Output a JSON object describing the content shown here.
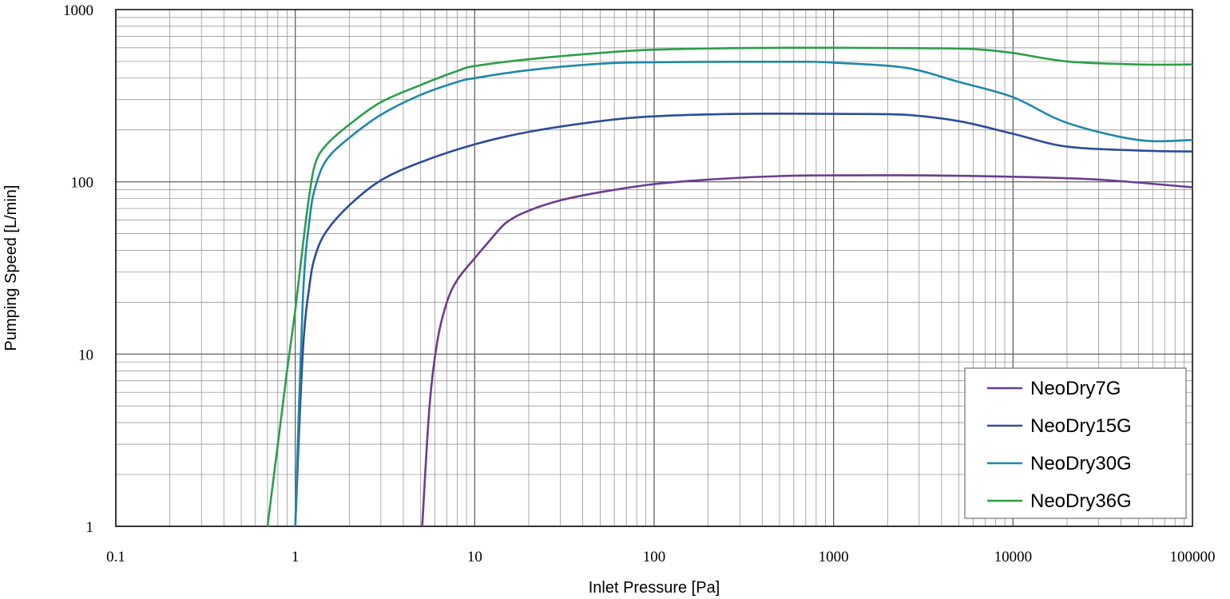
{
  "chart_data": {
    "type": "line",
    "title": "",
    "xlabel": "Inlet Pressure [Pa]",
    "ylabel": "Pumping  Speed [L/min]",
    "xscale": "log",
    "yscale": "log",
    "xlim": [
      0.1,
      100000
    ],
    "ylim": [
      1,
      1000
    ],
    "x_tick_labels": [
      "0.1",
      "1",
      "10",
      "100",
      "1000",
      "10000",
      "100000"
    ],
    "y_tick_labels": [
      "1",
      "10",
      "100",
      "1000"
    ],
    "grid": true,
    "legend_position": "bottom-right",
    "series": [
      {
        "name": "NeoDry7G",
        "color": "#6a3d8f",
        "x": [
          5.1,
          5.6,
          6.2,
          7,
          8,
          10,
          12,
          15,
          20,
          30,
          50,
          100,
          200,
          500,
          1000,
          3000,
          10000,
          30000,
          100000
        ],
        "y": [
          1,
          5,
          12,
          20,
          27,
          36,
          45,
          58,
          68,
          78,
          87,
          97,
          103,
          108,
          109,
          109,
          107,
          103,
          93
        ]
      },
      {
        "name": "NeoDry15G",
        "color": "#2e4b9b",
        "x": [
          1,
          1.1,
          1.2,
          1.3,
          1.5,
          2,
          3,
          5,
          10,
          20,
          50,
          100,
          300,
          1000,
          2500,
          5000,
          10000,
          20000,
          50000,
          100000
        ],
        "y": [
          1,
          10,
          25,
          38,
          52,
          73,
          102,
          130,
          165,
          195,
          225,
          240,
          248,
          248,
          245,
          225,
          190,
          160,
          152,
          150
        ]
      },
      {
        "name": "NeoDry30G",
        "color": "#1f88a8",
        "x": [
          1,
          1.1,
          1.2,
          1.3,
          1.5,
          2,
          3,
          5,
          8,
          10,
          20,
          50,
          100,
          300,
          700,
          1000,
          2500,
          5000,
          10000,
          20000,
          50000,
          100000
        ],
        "y": [
          1,
          20,
          60,
          95,
          135,
          180,
          245,
          320,
          380,
          400,
          445,
          485,
          495,
          498,
          498,
          492,
          460,
          380,
          310,
          220,
          175,
          175
        ]
      },
      {
        "name": "NeoDry36G",
        "color": "#2b9e4a",
        "x": [
          0.7,
          0.8,
          0.9,
          1,
          1.1,
          1.2,
          1.3,
          1.5,
          2,
          3,
          5,
          8,
          10,
          20,
          50,
          100,
          300,
          1000,
          3000,
          6000,
          10000,
          20000,
          50000,
          100000
        ],
        "y": [
          1,
          3,
          8,
          18,
          42,
          85,
          130,
          165,
          215,
          290,
          365,
          440,
          470,
          515,
          560,
          585,
          598,
          600,
          597,
          590,
          560,
          500,
          480,
          480
        ]
      }
    ]
  }
}
